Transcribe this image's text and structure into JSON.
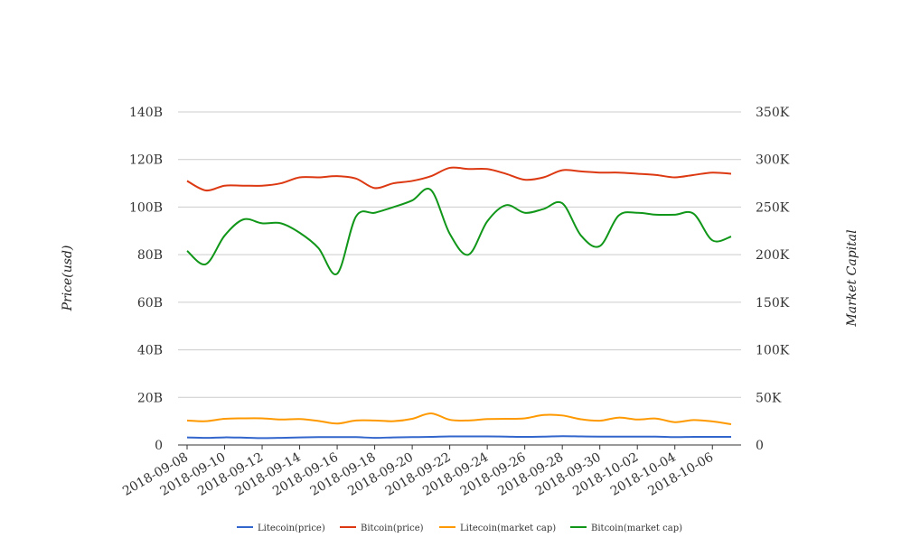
{
  "chart_data": {
    "type": "line",
    "ylabel": "Price(usd)",
    "y2label": "Market Capital",
    "ylim": [
      0,
      140000000000
    ],
    "y2lim": [
      0,
      350000
    ],
    "y_ticks": [
      "0",
      "20B",
      "40B",
      "60B",
      "80B",
      "100B",
      "120B",
      "140B"
    ],
    "y2_ticks": [
      "0",
      "50K",
      "100K",
      "150K",
      "200K",
      "250K",
      "300K",
      "350K"
    ],
    "x_tick_labels": [
      "2018-09-08",
      "2018-09-10",
      "2018-09-12",
      "2018-09-14",
      "2018-09-16",
      "2018-09-18",
      "2018-09-20",
      "2018-09-22",
      "2018-09-24",
      "2018-09-26",
      "2018-09-28",
      "2018-09-30",
      "2018-10-02",
      "2018-10-04",
      "2018-10-06"
    ],
    "x": [
      "2018-09-08",
      "2018-09-09",
      "2018-09-10",
      "2018-09-11",
      "2018-09-12",
      "2018-09-13",
      "2018-09-14",
      "2018-09-15",
      "2018-09-16",
      "2018-09-17",
      "2018-09-18",
      "2018-09-19",
      "2018-09-20",
      "2018-09-21",
      "2018-09-22",
      "2018-09-23",
      "2018-09-24",
      "2018-09-25",
      "2018-09-26",
      "2018-09-27",
      "2018-09-28",
      "2018-09-29",
      "2018-09-30",
      "2018-10-01",
      "2018-10-02",
      "2018-10-03",
      "2018-10-04",
      "2018-10-05",
      "2018-10-06",
      "2018-10-07"
    ],
    "grid": true,
    "legend_position": "bottom",
    "series": [
      {
        "name": "Litecoin(price)",
        "axis": "left",
        "color": "#3366cc",
        "values": [
          3200000000.0,
          3000000000.0,
          3200000000.0,
          3100000000.0,
          2900000000.0,
          3000000000.0,
          3200000000.0,
          3300000000.0,
          3300000000.0,
          3300000000.0,
          3000000000.0,
          3200000000.0,
          3300000000.0,
          3400000000.0,
          3600000000.0,
          3600000000.0,
          3600000000.0,
          3500000000.0,
          3400000000.0,
          3500000000.0,
          3700000000.0,
          3600000000.0,
          3500000000.0,
          3500000000.0,
          3500000000.0,
          3500000000.0,
          3300000000.0,
          3400000000.0,
          3400000000.0,
          3400000000.0
        ]
      },
      {
        "name": "Bitcoin(price)",
        "axis": "left",
        "color": "#dc3912",
        "values": [
          111000000000.0,
          107000000000.0,
          109000000000.0,
          109000000000.0,
          109000000000.0,
          110000000000.0,
          112500000000.0,
          112500000000.0,
          113000000000.0,
          112000000000.0,
          108000000000.0,
          110000000000.0,
          111000000000.0,
          113000000000.0,
          116500000000.0,
          116000000000.0,
          116000000000.0,
          114000000000.0,
          111500000000.0,
          112500000000.0,
          115500000000.0,
          115000000000.0,
          114500000000.0,
          114500000000.0,
          114000000000.0,
          113500000000.0,
          112500000000.0,
          113500000000.0,
          114500000000.0,
          114000000000.0
        ]
      },
      {
        "name": "Litecoin(market cap)",
        "axis": "left",
        "color": "#ff9900",
        "values": [
          10300000000.0,
          10000000000.0,
          11000000000.0,
          11200000000.0,
          11200000000.0,
          10700000000.0,
          10900000000.0,
          10100000000.0,
          9000000000.0,
          10300000000.0,
          10300000000.0,
          10000000000.0,
          11000000000.0,
          13300000000.0,
          10600000000.0,
          10300000000.0,
          10900000000.0,
          11000000000.0,
          11200000000.0,
          12600000000.0,
          12400000000.0,
          10800000000.0,
          10200000000.0,
          11500000000.0,
          10700000000.0,
          11100000000.0,
          9600000000.0,
          10500000000.0,
          9900000000.0,
          8700000000.0
        ]
      },
      {
        "name": "Bitcoin(market cap)",
        "axis": "right",
        "color": "#109618",
        "values": [
          204000,
          190000,
          220000,
          237000,
          233000,
          233000,
          223000,
          207000,
          180000,
          240000,
          244000,
          250000,
          257000,
          268000,
          222000,
          200000,
          235000,
          252000,
          244000,
          248000,
          254000,
          220000,
          209000,
          241000,
          244000,
          242000,
          242000,
          243000,
          215000,
          219000
        ]
      }
    ]
  }
}
